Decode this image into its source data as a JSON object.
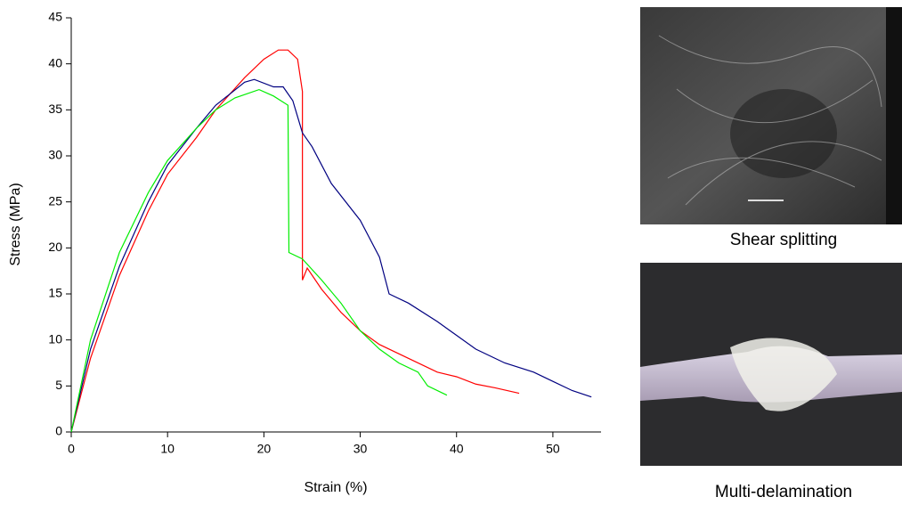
{
  "chart_data": {
    "type": "line",
    "xlabel": "Strain (%)",
    "ylabel": "Stress (MPa)",
    "xlim": [
      0,
      55
    ],
    "ylim": [
      0,
      45
    ],
    "xticks": [
      0,
      10,
      20,
      30,
      40,
      50
    ],
    "yticks": [
      0,
      5,
      10,
      15,
      20,
      25,
      30,
      35,
      40,
      45
    ],
    "series": [
      {
        "color": "#ff0000",
        "x": [
          0,
          2,
          5,
          8,
          10,
          13,
          15,
          18,
          20,
          21.5,
          22.5,
          23.5,
          24,
          24,
          24.5,
          26,
          28,
          30,
          32,
          35,
          38,
          40,
          42,
          44,
          46.5
        ],
        "values": [
          0,
          8,
          17,
          24,
          28,
          32,
          35,
          38.5,
          40.5,
          41.5,
          41.5,
          40.5,
          37,
          16.5,
          17.8,
          15.5,
          13,
          11,
          9.5,
          8,
          6.5,
          6,
          5.2,
          4.8,
          4.2
        ]
      },
      {
        "color": "#000080",
        "x": [
          0,
          2,
          5,
          8,
          10,
          13,
          15,
          18,
          19,
          21,
          22,
          23,
          24,
          25,
          27,
          30,
          32,
          33,
          35,
          38,
          40,
          42,
          45,
          48,
          50,
          52,
          54
        ],
        "values": [
          0,
          9,
          18,
          25,
          29,
          33,
          35.5,
          38,
          38.3,
          37.5,
          37.5,
          36,
          32.5,
          31,
          27,
          23,
          19,
          15,
          14,
          12,
          10.5,
          9,
          7.5,
          6.5,
          5.5,
          4.5,
          3.8
        ]
      },
      {
        "color": "#00ee00",
        "x": [
          0,
          2,
          5,
          8,
          10,
          13,
          15,
          17,
          19.5,
          21,
          22.5,
          22.6,
          24,
          26,
          28,
          30,
          32,
          34,
          36,
          37,
          39
        ],
        "values": [
          0,
          10,
          19.5,
          26,
          29.5,
          33,
          35,
          36.3,
          37.2,
          36.5,
          35.5,
          19.5,
          18.8,
          16.5,
          14,
          11,
          9,
          7.5,
          6.5,
          5,
          4
        ]
      }
    ]
  },
  "photos": [
    {
      "caption": "Shear splitting"
    },
    {
      "caption": "Multi-delamination"
    }
  ]
}
